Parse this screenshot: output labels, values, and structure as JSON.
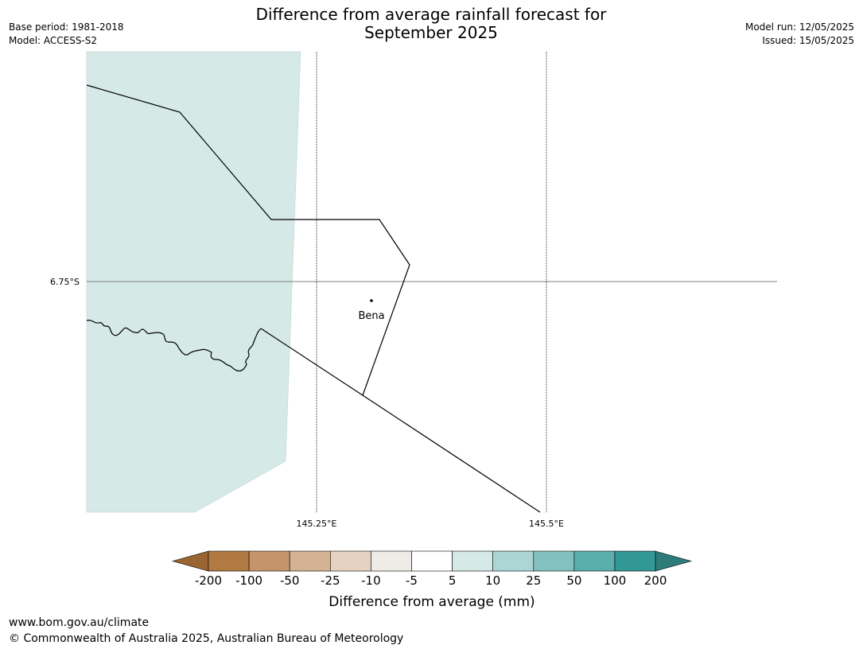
{
  "title_line1": "Difference from average rainfall forecast for",
  "title_line2": "September 2025",
  "meta_left": {
    "base_period": "Base period: 1981-2018",
    "model": "Model: ACCESS-S2"
  },
  "meta_right": {
    "model_run": "Model run: 12/05/2025",
    "issued": "Issued: 15/05/2025"
  },
  "map": {
    "lat_label": "6.75°S",
    "lon_labels": [
      "145.25°E",
      "145.5°E"
    ],
    "place_label": "Bena",
    "shade_color": "#d5e9e7",
    "line_color": "#000000",
    "grid_color": "#808080"
  },
  "legend": {
    "tick_labels": [
      "-200",
      "-100",
      "-50",
      "-25",
      "-10",
      "-5",
      "5",
      "10",
      "25",
      "50",
      "100",
      "200"
    ],
    "colors": [
      "#9a6531",
      "#b07a40",
      "#c4956b",
      "#d4b394",
      "#e6d2c0",
      "#efebe7",
      "#ffffff",
      "#d5e9e7",
      "#acd6d5",
      "#83c1be",
      "#5aaeab",
      "#329895",
      "#2d7c7a"
    ],
    "label": "Difference from average (mm)"
  },
  "footer": {
    "url": "www.bom.gov.au/climate",
    "copyright": "© Commonwealth of Australia 2025, Australian Bureau of Meteorology"
  }
}
